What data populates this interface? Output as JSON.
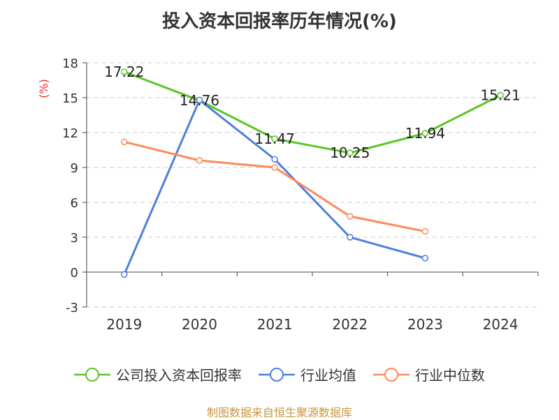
{
  "chart_data": {
    "type": "line",
    "title": "投入资本回报率历年情况(%)",
    "ylabel": "(%)",
    "categories": [
      "2019",
      "2020",
      "2021",
      "2022",
      "2023",
      "2024"
    ],
    "ylim": [
      -3,
      18
    ],
    "yticks": [
      -3,
      0,
      3,
      6,
      9,
      12,
      15,
      18
    ],
    "grid": "horizontal-dashed",
    "legend_position": "bottom",
    "series": [
      {
        "name": "公司投入资本回报率",
        "color": "#5ac626",
        "values": [
          17.22,
          14.76,
          11.47,
          10.25,
          11.94,
          15.21
        ],
        "labels": [
          "17.22",
          "14.76",
          "11.47",
          "10.25",
          "11.94",
          "15.21"
        ]
      },
      {
        "name": "行业均值",
        "color": "#4f7fdb",
        "values": [
          -0.2,
          14.8,
          9.7,
          3.0,
          1.2,
          null
        ]
      },
      {
        "name": "行业中位数",
        "color": "#fc8b5a",
        "values": [
          11.2,
          9.6,
          9.0,
          4.8,
          3.5,
          null
        ]
      }
    ]
  },
  "source_note": "制图数据来自恒生聚源数据库"
}
